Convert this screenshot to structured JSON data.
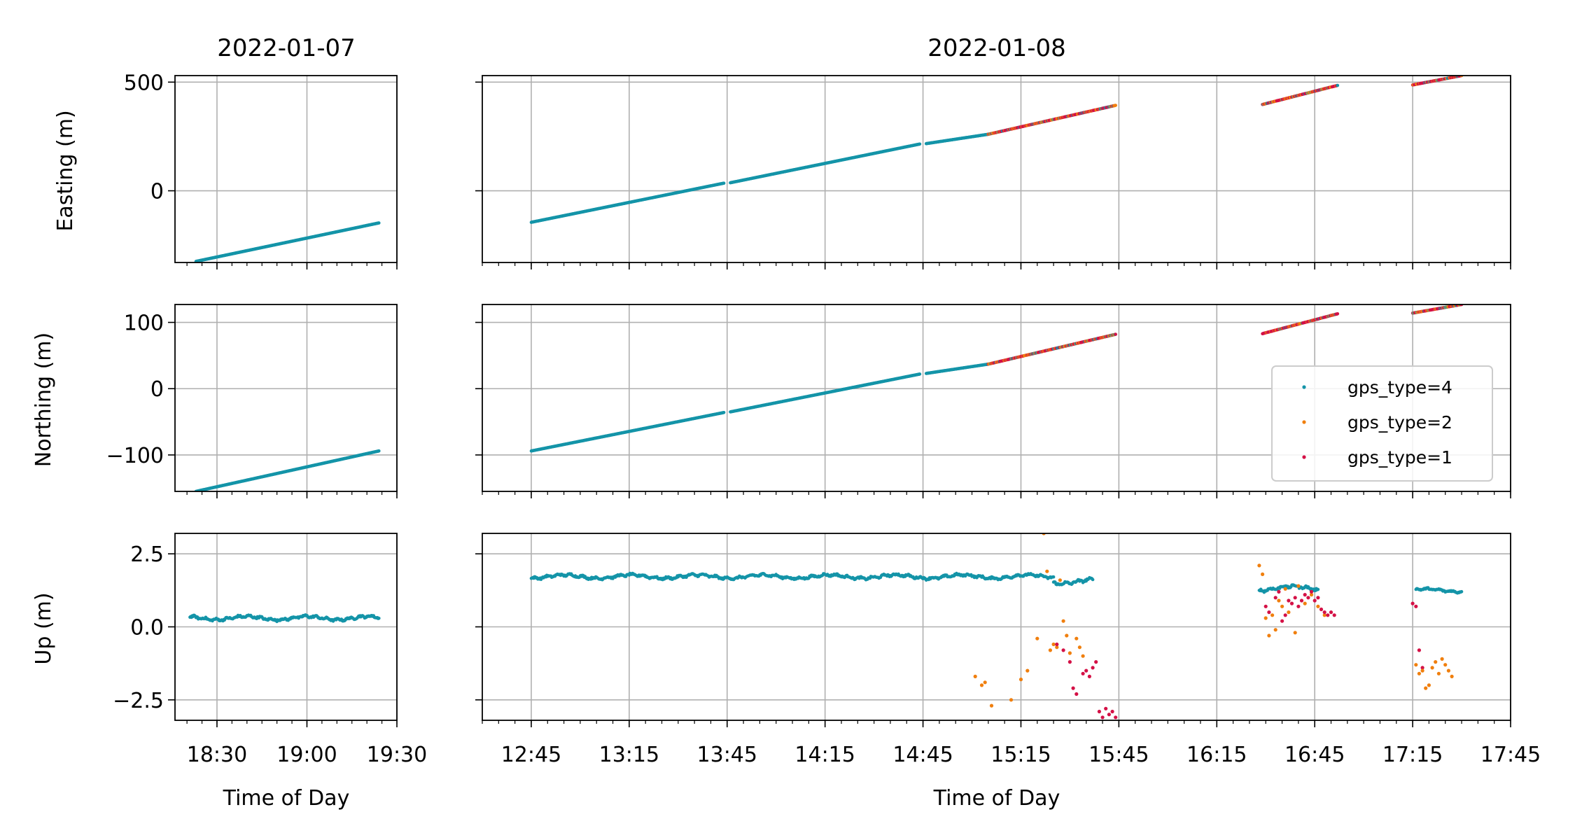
{
  "chart_data": {
    "type": "scatter",
    "panels_titles": [
      "2022-01-07",
      "2022-01-08"
    ],
    "xlabel": "Time of Day",
    "left_x_ticks": [
      "18:30",
      "19:00",
      "19:30"
    ],
    "right_x_ticks": [
      "12:45",
      "13:15",
      "13:45",
      "14:15",
      "14:45",
      "15:15",
      "15:45",
      "16:15",
      "16:45",
      "17:15",
      "17:45"
    ],
    "left_xlim": [
      "18:16",
      "19:30"
    ],
    "right_xlim": [
      "12:30",
      "17:45"
    ],
    "legend": {
      "placement": "right, middle row",
      "entries": [
        {
          "label": "gps_type=4",
          "color": "#1494a8"
        },
        {
          "label": "gps_type=2",
          "color": "#f07f0e"
        },
        {
          "label": "gps_type=1",
          "color": "#d41146"
        }
      ]
    },
    "rows": [
      {
        "ylabel": "Easting (m)",
        "ylim": [
          -330,
          530
        ],
        "yticks": [
          500,
          0
        ],
        "ytick_labels": [
          "500",
          "0"
        ],
        "day1_segments": [
          {
            "type": 4,
            "start": "18:23",
            "end": "19:24",
            "y0": -325,
            "y1": -148
          }
        ],
        "day2_segments": [
          {
            "type": 4,
            "start": "12:45",
            "end": "13:44",
            "y0": -145,
            "y1": 35
          },
          {
            "type": 4,
            "start": "13:46",
            "end": "14:44",
            "y0": 37,
            "y1": 215
          },
          {
            "type": 4,
            "start": "14:46",
            "end": "15:05",
            "y0": 217,
            "y1": 260
          },
          {
            "type": "mixed",
            "start": "15:05",
            "end": "15:44",
            "y0": 260,
            "y1": 393
          },
          {
            "type": "mixed",
            "start": "16:29",
            "end": "16:52",
            "y0": 397,
            "y1": 485
          },
          {
            "type": "mixed",
            "start": "17:15",
            "end": "17:30",
            "y0": 487,
            "y1": 530
          }
        ]
      },
      {
        "ylabel": "Northing (m)",
        "ylim": [
          -155,
          127
        ],
        "yticks": [
          100,
          0,
          -100
        ],
        "ytick_labels": [
          "100",
          "0",
          "−100"
        ],
        "day1_segments": [
          {
            "type": 4,
            "start": "18:23",
            "end": "19:24",
            "y0": -155,
            "y1": -94
          }
        ],
        "day2_segments": [
          {
            "type": 4,
            "start": "12:45",
            "end": "13:44",
            "y0": -94,
            "y1": -36
          },
          {
            "type": 4,
            "start": "13:46",
            "end": "14:44",
            "y0": -35,
            "y1": 22
          },
          {
            "type": 4,
            "start": "14:46",
            "end": "15:05",
            "y0": 23,
            "y1": 37
          },
          {
            "type": "mixed",
            "start": "15:05",
            "end": "15:44",
            "y0": 37,
            "y1": 82
          },
          {
            "type": "mixed",
            "start": "16:29",
            "end": "16:52",
            "y0": 83,
            "y1": 113
          },
          {
            "type": "mixed",
            "start": "17:15",
            "end": "17:30",
            "y0": 114,
            "y1": 127
          }
        ]
      },
      {
        "ylabel": "Up (m)",
        "ylim": [
          -3.2,
          3.2
        ],
        "yticks": [
          2.5,
          0,
          -2.5
        ],
        "ytick_labels": [
          "2.5",
          "0.0",
          "−2.5"
        ],
        "day1_series": [
          {
            "type": 4,
            "start": "18:21",
            "end": "19:24",
            "level": 0.3,
            "spread": 0.1
          }
        ],
        "day2_series": [
          {
            "type": 4,
            "start": "12:45",
            "end": "15:25",
            "level": 1.72,
            "spread": 0.1
          },
          {
            "type": 4,
            "start": "15:25",
            "end": "15:37",
            "level": 1.55,
            "spread": 0.12
          },
          {
            "type": 4,
            "start": "16:28",
            "end": "16:46",
            "level": 1.32,
            "spread": 0.12
          },
          {
            "type": 4,
            "start": "17:16",
            "end": "17:30",
            "level": 1.25,
            "spread": 0.08
          }
        ],
        "day2_points": [
          {
            "type": 2,
            "x": "15:01",
            "y": -1.7
          },
          {
            "type": 2,
            "x": "15:03",
            "y": -2.0
          },
          {
            "type": 2,
            "x": "15:04",
            "y": -1.9
          },
          {
            "type": 2,
            "x": "15:06",
            "y": -2.7
          },
          {
            "type": 2,
            "x": "15:12",
            "y": -2.5
          },
          {
            "type": 2,
            "x": "15:15",
            "y": -1.8
          },
          {
            "type": 2,
            "x": "15:17",
            "y": -1.5
          },
          {
            "type": 2,
            "x": "15:20",
            "y": -0.4
          },
          {
            "type": 2,
            "x": "15:22",
            "y": 3.2
          },
          {
            "type": 2,
            "x": "15:23",
            "y": 1.9
          },
          {
            "type": 2,
            "x": "15:24",
            "y": -0.8
          },
          {
            "type": 2,
            "x": "15:25",
            "y": -0.6
          },
          {
            "type": 2,
            "x": "15:26",
            "y": -0.7
          },
          {
            "type": 2,
            "x": "15:27",
            "y": 1.6
          },
          {
            "type": 2,
            "x": "15:28",
            "y": 0.2
          },
          {
            "type": 2,
            "x": "15:29",
            "y": -0.3
          },
          {
            "type": 2,
            "x": "15:30",
            "y": -0.9
          },
          {
            "type": 2,
            "x": "15:32",
            "y": -0.4
          },
          {
            "type": 2,
            "x": "15:33",
            "y": -0.7
          },
          {
            "type": 2,
            "x": "15:34",
            "y": -1.0
          },
          {
            "type": 1,
            "x": "15:26",
            "y": -0.6
          },
          {
            "type": 1,
            "x": "15:28",
            "y": -0.8
          },
          {
            "type": 1,
            "x": "15:30",
            "y": -1.2
          },
          {
            "type": 1,
            "x": "15:31",
            "y": -2.1
          },
          {
            "type": 1,
            "x": "15:32",
            "y": -2.3
          },
          {
            "type": 1,
            "x": "15:34",
            "y": -1.6
          },
          {
            "type": 1,
            "x": "15:35",
            "y": -1.5
          },
          {
            "type": 1,
            "x": "15:36",
            "y": -1.7
          },
          {
            "type": 1,
            "x": "15:37",
            "y": -1.4
          },
          {
            "type": 1,
            "x": "15:38",
            "y": -1.2
          },
          {
            "type": 1,
            "x": "15:39",
            "y": -2.9
          },
          {
            "type": 1,
            "x": "15:40",
            "y": -3.1
          },
          {
            "type": 1,
            "x": "15:41",
            "y": -2.8
          },
          {
            "type": 1,
            "x": "15:42",
            "y": -3.0
          },
          {
            "type": 1,
            "x": "15:43",
            "y": -2.9
          },
          {
            "type": 1,
            "x": "15:44",
            "y": -3.1
          },
          {
            "type": 2,
            "x": "16:28",
            "y": 2.1
          },
          {
            "type": 2,
            "x": "16:29",
            "y": 1.8
          },
          {
            "type": 2,
            "x": "16:30",
            "y": 0.3
          },
          {
            "type": 2,
            "x": "16:31",
            "y": -0.3
          },
          {
            "type": 2,
            "x": "16:32",
            "y": 0.4
          },
          {
            "type": 2,
            "x": "16:33",
            "y": -0.1
          },
          {
            "type": 2,
            "x": "16:34",
            "y": 0.9
          },
          {
            "type": 2,
            "x": "16:35",
            "y": 0.7
          },
          {
            "type": 2,
            "x": "16:36",
            "y": 1.3
          },
          {
            "type": 2,
            "x": "16:37",
            "y": 0.5
          },
          {
            "type": 2,
            "x": "16:39",
            "y": -0.2
          },
          {
            "type": 2,
            "x": "16:40",
            "y": 1.4
          },
          {
            "type": 2,
            "x": "16:42",
            "y": 0.8
          },
          {
            "type": 2,
            "x": "16:44",
            "y": 1.1
          },
          {
            "type": 2,
            "x": "16:46",
            "y": 0.7
          },
          {
            "type": 2,
            "x": "16:48",
            "y": 0.4
          },
          {
            "type": 1,
            "x": "16:30",
            "y": 0.7
          },
          {
            "type": 1,
            "x": "16:31",
            "y": 0.5
          },
          {
            "type": 1,
            "x": "16:33",
            "y": 1.0
          },
          {
            "type": 1,
            "x": "16:34",
            "y": 1.2
          },
          {
            "type": 1,
            "x": "16:35",
            "y": 0.2
          },
          {
            "type": 1,
            "x": "16:36",
            "y": 0.4
          },
          {
            "type": 1,
            "x": "16:37",
            "y": 0.9
          },
          {
            "type": 1,
            "x": "16:38",
            "y": 0.8
          },
          {
            "type": 1,
            "x": "16:39",
            "y": 1.0
          },
          {
            "type": 1,
            "x": "16:40",
            "y": 0.7
          },
          {
            "type": 1,
            "x": "16:41",
            "y": 0.9
          },
          {
            "type": 1,
            "x": "16:42",
            "y": 1.1
          },
          {
            "type": 1,
            "x": "16:43",
            "y": 1.0
          },
          {
            "type": 1,
            "x": "16:44",
            "y": 1.2
          },
          {
            "type": 1,
            "x": "16:45",
            "y": 0.9
          },
          {
            "type": 1,
            "x": "16:46",
            "y": 1.0
          },
          {
            "type": 1,
            "x": "16:47",
            "y": 0.6
          },
          {
            "type": 1,
            "x": "16:48",
            "y": 0.5
          },
          {
            "type": 1,
            "x": "16:49",
            "y": 0.4
          },
          {
            "type": 1,
            "x": "16:50",
            "y": 0.5
          },
          {
            "type": 1,
            "x": "16:51",
            "y": 0.4
          },
          {
            "type": 1,
            "x": "17:15",
            "y": 0.8
          },
          {
            "type": 1,
            "x": "17:16",
            "y": 0.7
          },
          {
            "type": 1,
            "x": "17:17",
            "y": -0.8
          },
          {
            "type": 1,
            "x": "17:18",
            "y": -1.4
          },
          {
            "type": 2,
            "x": "17:16",
            "y": -1.3
          },
          {
            "type": 2,
            "x": "17:17",
            "y": -1.6
          },
          {
            "type": 2,
            "x": "17:18",
            "y": -1.5
          },
          {
            "type": 2,
            "x": "17:19",
            "y": -2.1
          },
          {
            "type": 2,
            "x": "17:20",
            "y": -2.0
          },
          {
            "type": 2,
            "x": "17:21",
            "y": -1.4
          },
          {
            "type": 2,
            "x": "17:22",
            "y": -1.2
          },
          {
            "type": 2,
            "x": "17:23",
            "y": -1.6
          },
          {
            "type": 2,
            "x": "17:24",
            "y": -1.1
          },
          {
            "type": 2,
            "x": "17:25",
            "y": -1.3
          },
          {
            "type": 2,
            "x": "17:26",
            "y": -1.5
          },
          {
            "type": 2,
            "x": "17:27",
            "y": -1.7
          }
        ]
      }
    ]
  }
}
